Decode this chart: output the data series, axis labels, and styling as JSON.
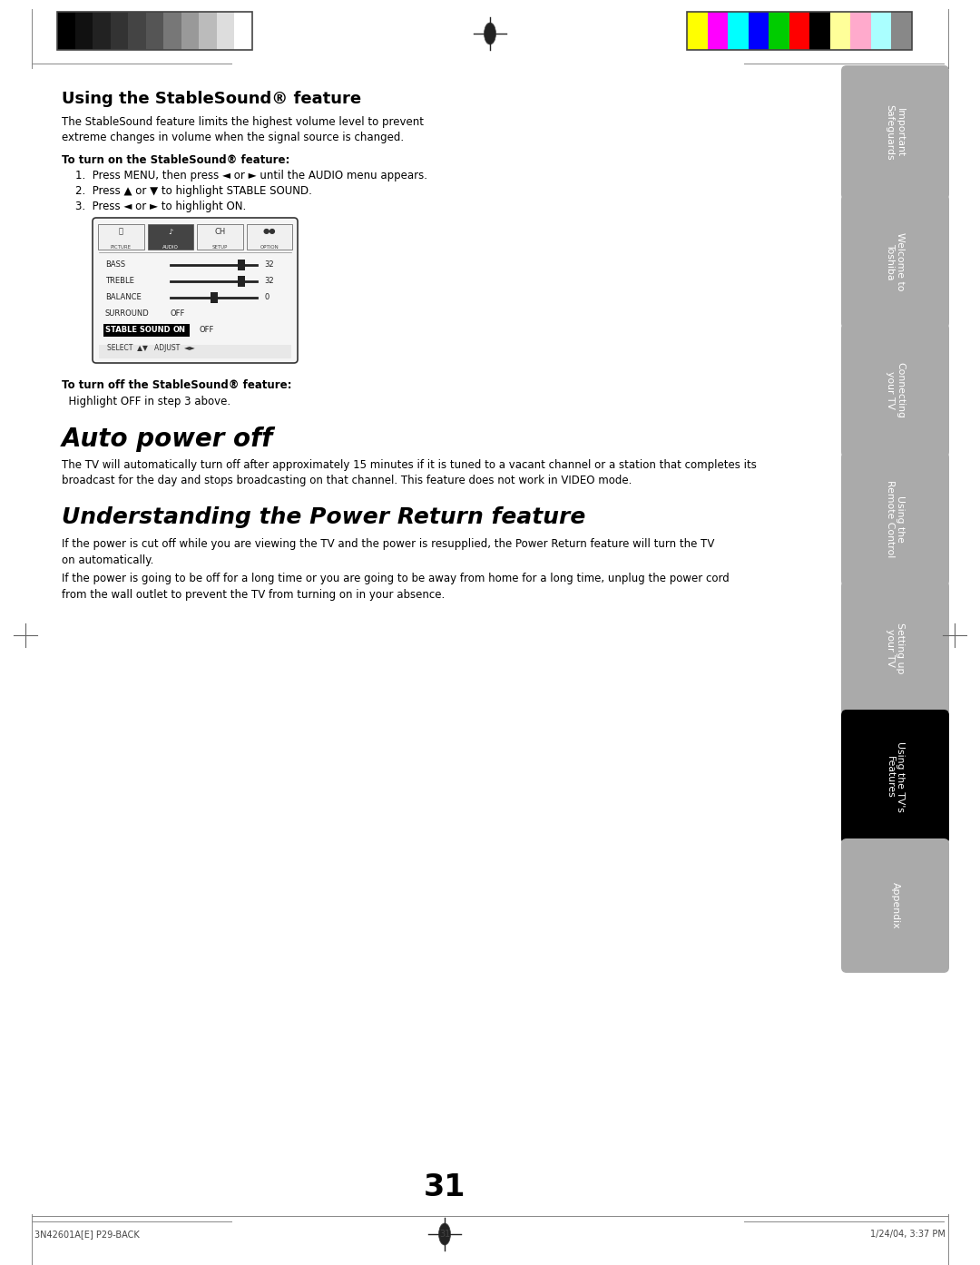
{
  "page_bg": "#ffffff",
  "page_number": "31",
  "footer_left": "3N42601A[E] P29-BACK",
  "footer_center": "31",
  "footer_right": "1/24/04, 3:37 PM",
  "section1_title": "Using the StableSound® feature",
  "section1_intro": "The StableSound feature limits the highest volume level to prevent\nextreme changes in volume when the signal source is changed.",
  "section1_bold_head": "To turn on the StableSound® feature:",
  "section1_steps": [
    "Press MENU, then press ◄ or ► until the AUDIO menu appears.",
    "Press ▲ or ▼ to highlight STABLE SOUND.",
    "Press ◄ or ► to highlight ON."
  ],
  "section1_turn_off_bold": "To turn off the StableSound® feature:",
  "section1_turn_off": "  Highlight OFF in step 3 above.",
  "section2_title": "Auto power off",
  "section2_body": "The TV will automatically turn off after approximately 15 minutes if it is tuned to a vacant channel or a station that completes its\nbroadcast for the day and stops broadcasting on that channel. This feature does not work in VIDEO mode.",
  "section3_title": "Understanding the Power Return feature",
  "section3_body1": "If the power is cut off while you are viewing the TV and the power is resupplied, the Power Return feature will turn the TV\non automatically.",
  "section3_body2": "If the power is going to be off for a long time or you are going to be away from home for a long time, unplug the power cord\nfrom the wall outlet to prevent the TV from turning on in your absence.",
  "tabs": [
    {
      "label": "Important\nSafeguards",
      "active": false
    },
    {
      "label": "Welcome to\nToshiba",
      "active": false
    },
    {
      "label": "Connecting\nyour TV",
      "active": false
    },
    {
      "label": "Using the\nRemote Control",
      "active": false
    },
    {
      "label": "Setting up\nyour TV",
      "active": false
    },
    {
      "label": "Using the TV's\nFeatures",
      "active": true
    },
    {
      "label": "Appendix",
      "active": false
    }
  ],
  "tab_color_inactive": "#aaaaaa",
  "tab_color_active": "#000000",
  "grayscale_colors": [
    "#000000",
    "#111111",
    "#222222",
    "#333333",
    "#444444",
    "#555555",
    "#777777",
    "#999999",
    "#bbbbbb",
    "#dddddd",
    "#ffffff"
  ],
  "color_bars": [
    "#ffff00",
    "#ff00ff",
    "#00ffff",
    "#0000ff",
    "#00cc00",
    "#ff0000",
    "#000000",
    "#ffff99",
    "#ffaacc",
    "#aaffff",
    "#888888"
  ]
}
